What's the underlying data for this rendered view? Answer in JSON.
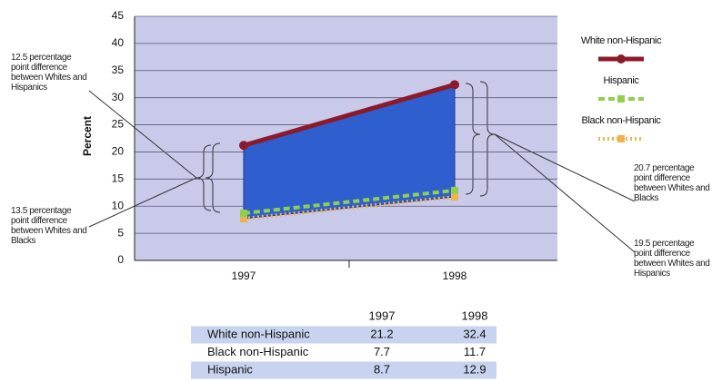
{
  "chart_data": {
    "type": "line",
    "y_label": "Percent",
    "categories": [
      "1997",
      "1998"
    ],
    "series": [
      {
        "name": "White non-Hispanic",
        "color": "#8b1a2b",
        "line_style": "solid",
        "values": [
          21.2,
          32.4
        ]
      },
      {
        "name": "Hispanic",
        "color": "#8fd14f",
        "line_style": "dashed",
        "values": [
          8.7,
          12.9
        ]
      },
      {
        "name": "Black non-Hispanic",
        "color": "#f2b14a",
        "line_style": "dotted",
        "values": [
          7.7,
          11.7
        ]
      }
    ],
    "ylim": [
      0,
      45
    ],
    "yticks": [
      0,
      5,
      10,
      15,
      20,
      25,
      30,
      35,
      40,
      45
    ],
    "grid": true,
    "legend": "right",
    "annotations": [
      "12.5 percentage point difference between Whites and Hispanics",
      "13.5 percentage point difference between Whites and Blacks",
      "20.7 percentage point difference between Whites and Blacks",
      "19.5 percentage point difference between Whites and Hispanics"
    ],
    "table_rows": [
      0,
      2,
      1
    ]
  }
}
